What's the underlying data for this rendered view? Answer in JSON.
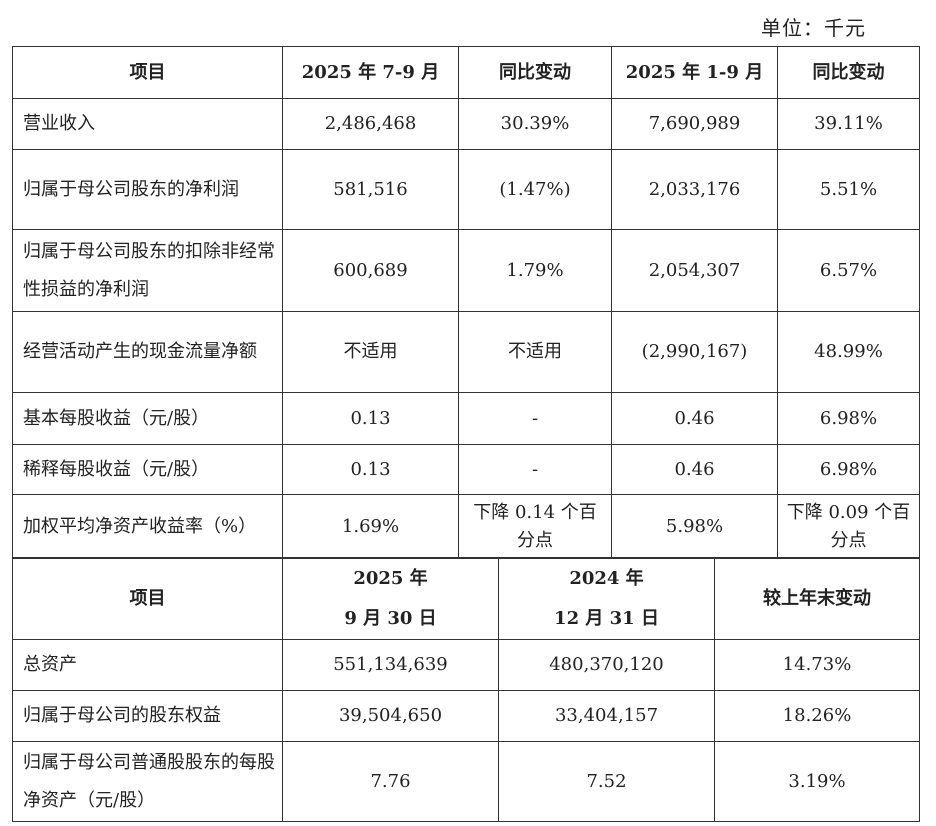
{
  "unit_label": "单位：千元",
  "table1": {
    "headers": [
      "项目",
      "2025 年 7-9 月",
      "同比变动",
      "2025 年 1-9 月",
      "同比变动"
    ],
    "rows": [
      {
        "label": "营业收入",
        "q3": "2,486,468",
        "q3_yoy": "30.39%",
        "ytd": "7,690,989",
        "ytd_yoy": "39.11%"
      },
      {
        "label": "归属于母公司股东的净利润",
        "q3": "581,516",
        "q3_yoy": "(1.47%)",
        "ytd": "2,033,176",
        "ytd_yoy": "5.51%"
      },
      {
        "label": "归属于母公司股东的扣除非经常性损益的净利润",
        "q3": "600,689",
        "q3_yoy": "1.79%",
        "ytd": "2,054,307",
        "ytd_yoy": "6.57%"
      },
      {
        "label": "经营活动产生的现金流量净额",
        "q3": "不适用",
        "q3_yoy": "不适用",
        "ytd": "(2,990,167)",
        "ytd_yoy": "48.99%"
      },
      {
        "label": "基本每股收益（元/股）",
        "q3": "0.13",
        "q3_yoy": "-",
        "ytd": "0.46",
        "ytd_yoy": "6.98%"
      },
      {
        "label": "稀释每股收益（元/股）",
        "q3": "0.13",
        "q3_yoy": "-",
        "ytd": "0.46",
        "ytd_yoy": "6.98%"
      },
      {
        "label": "加权平均净资产收益率（%）",
        "q3": "1.69%",
        "q3_yoy": "下降 0.14 个百分点",
        "ytd": "5.98%",
        "ytd_yoy": "下降 0.09 个百分点"
      }
    ]
  },
  "table2": {
    "headers": {
      "item": "项目",
      "col1_line1": "2025 年",
      "col1_line2": "9 月 30 日",
      "col2_line1": "2024 年",
      "col2_line2": "12 月 31 日",
      "col3": "较上年末变动"
    },
    "rows": [
      {
        "label": "总资产",
        "v1": "551,134,639",
        "v2": "480,370,120",
        "chg": "14.73%"
      },
      {
        "label": "归属于母公司的股东权益",
        "v1": "39,504,650",
        "v2": "33,404,157",
        "chg": "18.26%"
      },
      {
        "label": "归属于母公司普通股股东的每股净资产（元/股）",
        "v1": "7.76",
        "v2": "7.52",
        "chg": "3.19%"
      }
    ]
  }
}
